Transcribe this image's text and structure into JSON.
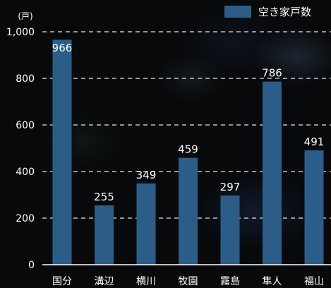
{
  "chart_data": {
    "type": "bar",
    "unit_label": "(戸)",
    "categories": [
      "国分",
      "溝辺",
      "横川",
      "牧園",
      "霧島",
      "隼人",
      "福山"
    ],
    "series": [
      {
        "name": "空き家戸数",
        "values": [
          966,
          255,
          349,
          459,
          297,
          786,
          491
        ],
        "color": "#2b5d88"
      }
    ],
    "ylim": [
      0,
      1000
    ],
    "yticks": [
      0,
      200,
      400,
      600,
      800,
      1000
    ],
    "ytick_labels": [
      "0",
      "200",
      "400",
      "600",
      "800",
      "1,000"
    ],
    "grid": true,
    "legend_position": "top-right",
    "text_color": "#ffffff",
    "grid_color": "#ffffff"
  }
}
